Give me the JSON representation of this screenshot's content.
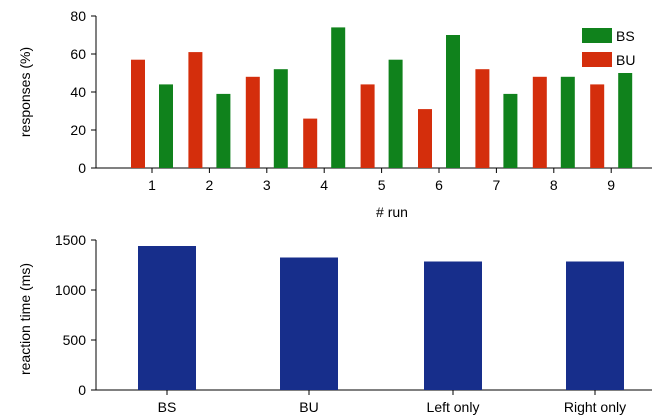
{
  "chart_data": [
    {
      "type": "bar",
      "categories": [
        "1",
        "2",
        "3",
        "4",
        "5",
        "6",
        "7",
        "8",
        "9"
      ],
      "series": [
        {
          "name": "BU",
          "color": "#d42e0c",
          "values": [
            57,
            61,
            48,
            26,
            44,
            31,
            52,
            48,
            44
          ]
        },
        {
          "name": "BS",
          "color": "#10821c",
          "values": [
            44,
            39,
            52,
            74,
            57,
            70,
            39,
            48,
            50
          ]
        }
      ],
      "legend_order": [
        "BS",
        "BU"
      ],
      "legend_position": "top-right",
      "xlabel": "# run",
      "ylabel": "responses (%)",
      "ylim": [
        0,
        80
      ],
      "yticks": [
        0,
        20,
        40,
        60,
        80
      ],
      "grid": false
    },
    {
      "type": "bar",
      "categories": [
        "BS",
        "BU",
        "Left only",
        "Right only"
      ],
      "values": [
        1440,
        1325,
        1285,
        1285
      ],
      "color": "#172e8b",
      "xlabel": "",
      "ylabel": "reaction time (ms)",
      "ylim": [
        0,
        1500
      ],
      "yticks": [
        0,
        500,
        1000,
        1500
      ],
      "grid": false
    }
  ]
}
